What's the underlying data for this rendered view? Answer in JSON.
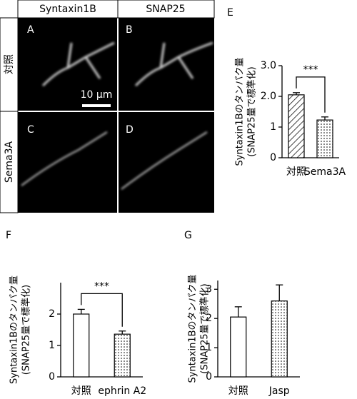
{
  "image_panel": {
    "columns": [
      "Syntaxin1B",
      "SNAP25"
    ],
    "rows": [
      "対照",
      "Sema3A"
    ],
    "panel_labels": [
      "A",
      "B",
      "C",
      "D"
    ],
    "scale_bar": "10 μm"
  },
  "chart_data": [
    {
      "type": "bar",
      "panel": "E",
      "ylabel": [
        "Syntaxin1Bのタンパク量",
        "(SNAP25量で標準化)"
      ],
      "categories": [
        "対照",
        "Sema3A"
      ],
      "values": [
        2.05,
        1.23
      ],
      "errors": [
        0.07,
        0.1
      ],
      "patterns": [
        "hatch",
        "dots"
      ],
      "ylim": [
        0,
        3
      ],
      "yticks": [
        0,
        1,
        {
          "value": 2,
          "label": "2.0"
        },
        {
          "value": 3,
          "label": "3.0"
        }
      ],
      "significance": "***"
    },
    {
      "type": "bar",
      "panel": "F",
      "ylabel": [
        "Syntaxin1Bのタンパク量",
        "(SNAP25量で標準化)"
      ],
      "categories": [
        "対照",
        "ephrin A2"
      ],
      "values": [
        2.0,
        1.36
      ],
      "errors": [
        0.15,
        0.1
      ],
      "patterns": [
        "open",
        "dots"
      ],
      "ylim": [
        0,
        3
      ],
      "yticks": [
        0,
        1,
        2
      ],
      "significance": "***"
    },
    {
      "type": "bar",
      "panel": "G",
      "ylabel": [
        "Syntaxin1Bのタンパク量",
        "(SNAP25量で標準化)"
      ],
      "categories": [
        "対照",
        "Jasp"
      ],
      "values": [
        2.05,
        2.6
      ],
      "errors": [
        0.35,
        0.55
      ],
      "patterns": [
        "open",
        "dots"
      ],
      "ylim": [
        0,
        3.3
      ],
      "yticks": [
        0,
        1,
        2,
        3
      ]
    }
  ]
}
